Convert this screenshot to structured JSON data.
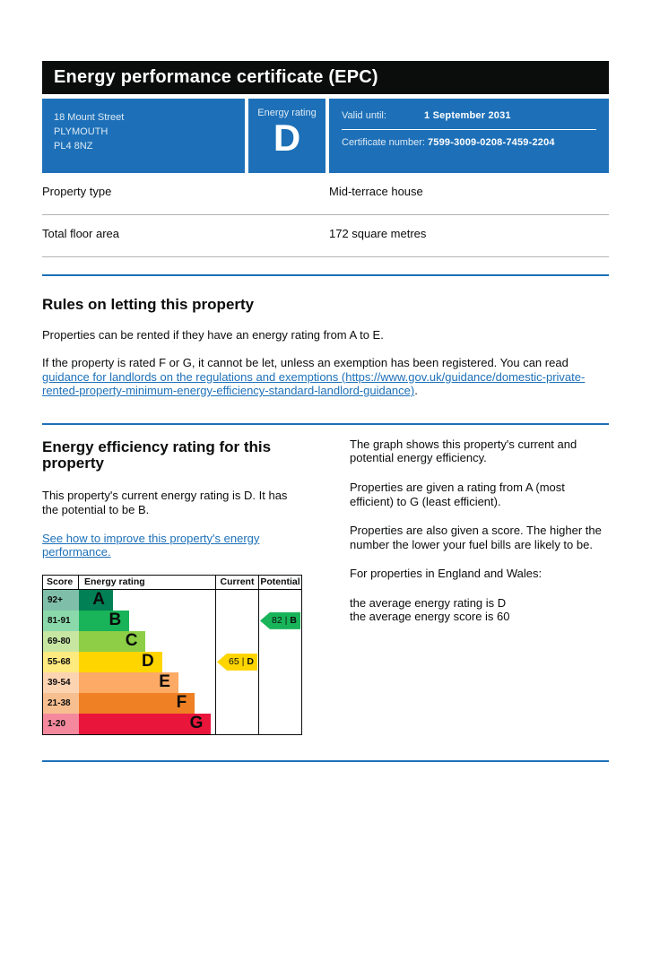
{
  "header": {
    "title": "Energy performance certificate (EPC)"
  },
  "summary": {
    "address_lines": [
      "18 Mount Street",
      "PLYMOUTH",
      "PL4 8NZ"
    ],
    "energy_rating_label": "Energy rating",
    "energy_rating": "D",
    "valid_until_label": "Valid until:",
    "valid_until": "1 September 2031",
    "certificate_number_label": "Certificate number:",
    "certificate_number": "7599-3009-0208-7459-2204"
  },
  "facts": [
    {
      "label": "Property type",
      "value": "Mid-terrace house"
    },
    {
      "label": "Total floor area",
      "value": "172 square metres"
    }
  ],
  "rules": {
    "heading": "Rules on letting this property",
    "para1": "Properties can be rented if they have an energy rating from A to E.",
    "para2_prefix": "If the property is rated F or G, it cannot be let, unless an exemption has been registered. You can read ",
    "para2_link": "guidance for landlords on the regulations and exemptions (https://www.gov.uk/guidance/domestic-private-rented-property-minimum-energy-efficiency-standard-landlord-guidance)",
    "para2_suffix": "."
  },
  "rating": {
    "heading": "Energy efficiency rating for this property",
    "para1": "This property's current energy rating is D. It has the potential to be B.",
    "improve_link": "See how to improve this property's energy performance.",
    "explanation_paragraphs": [
      "The graph shows this property's current and potential energy efficiency.",
      "Properties are given a rating from A (most efficient) to G (least efficient).",
      "Properties are also given a score. The higher the number the lower your fuel bills are likely to be.",
      "For properties in England and Wales:"
    ],
    "average_lines": [
      "the average energy rating is D",
      "the average energy score is 60"
    ]
  },
  "chart_data": {
    "type": "bar",
    "title": "Energy efficiency rating",
    "columns": [
      "Score",
      "Energy rating",
      "Current",
      "Potential"
    ],
    "bands": [
      {
        "range": "92+",
        "letter": "A",
        "color": "#008054",
        "tint": "#7fbfa9",
        "width_pct": 25
      },
      {
        "range": "81-91",
        "letter": "B",
        "color": "#19b459",
        "tint": "#8bd9ab",
        "width_pct": 37
      },
      {
        "range": "69-80",
        "letter": "C",
        "color": "#8dce46",
        "tint": "#c6e6a2",
        "width_pct": 49
      },
      {
        "range": "55-68",
        "letter": "D",
        "color": "#ffd500",
        "tint": "#ffea7f",
        "width_pct": 61
      },
      {
        "range": "39-54",
        "letter": "E",
        "color": "#fcaa65",
        "tint": "#fdd4b2",
        "width_pct": 73
      },
      {
        "range": "21-38",
        "letter": "F",
        "color": "#ef8023",
        "tint": "#f7bf90",
        "width_pct": 85
      },
      {
        "range": "1-20",
        "letter": "G",
        "color": "#e9153b",
        "tint": "#f4899d",
        "width_pct": 97
      }
    ],
    "current": {
      "score": "65",
      "band": "D",
      "band_index": 3,
      "color": "#ffd500"
    },
    "potential": {
      "score": "82",
      "band": "B",
      "band_index": 1,
      "color": "#19b459"
    }
  },
  "colors": {
    "brand_blue": "#1d70b8",
    "banner_black": "#0b0c0c",
    "row_border_grey": "#b1b4b6",
    "link_blue": "#1d70b8"
  }
}
